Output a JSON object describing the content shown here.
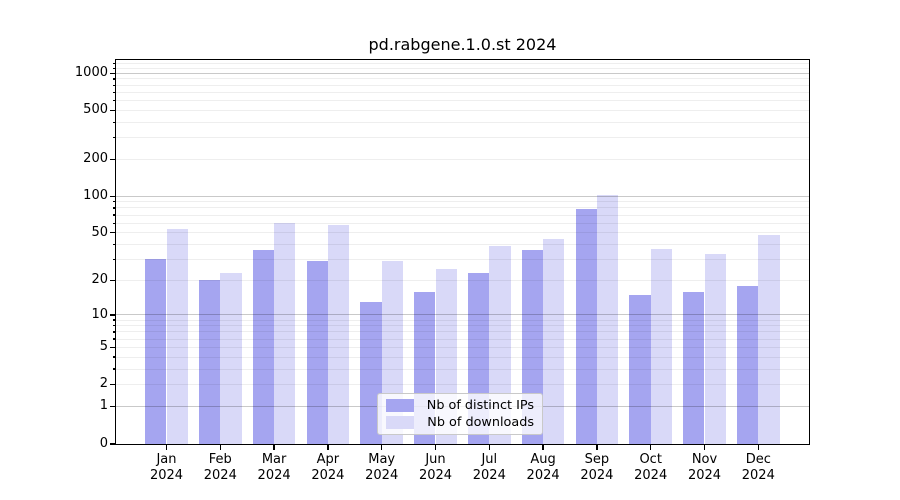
{
  "title": "pd.rabgene.1.0.st 2024",
  "chart_data": {
    "type": "bar",
    "title": "pd.rabgene.1.0.st 2024",
    "x_axis": {
      "categories": [
        "Jan",
        "Feb",
        "Mar",
        "Apr",
        "May",
        "Jun",
        "Jul",
        "Aug",
        "Sep",
        "Oct",
        "Nov",
        "Dec"
      ],
      "year": "2024"
    },
    "y_axis": {
      "scale": "log1p",
      "ticks": [
        0,
        1,
        2,
        5,
        10,
        20,
        50,
        100,
        200,
        500,
        1000
      ],
      "range": [
        0,
        1290
      ]
    },
    "series": [
      {
        "name": "Nb of distinct IPs",
        "color": "#a5a5f0",
        "values": [
          30,
          20,
          36,
          29,
          13,
          16,
          23,
          36,
          79,
          15,
          16,
          18
        ]
      },
      {
        "name": "Nb of downloads",
        "color": "#d9d9f8",
        "values": [
          54,
          23,
          60,
          58,
          29,
          25,
          39,
          44,
          103,
          37,
          33,
          48
        ]
      }
    ],
    "legend_position": "lower center",
    "grid": true,
    "grid_major_color": "#c9c9c9",
    "grid_minor_color": "#ececec",
    "background_color": "#ffffff"
  }
}
